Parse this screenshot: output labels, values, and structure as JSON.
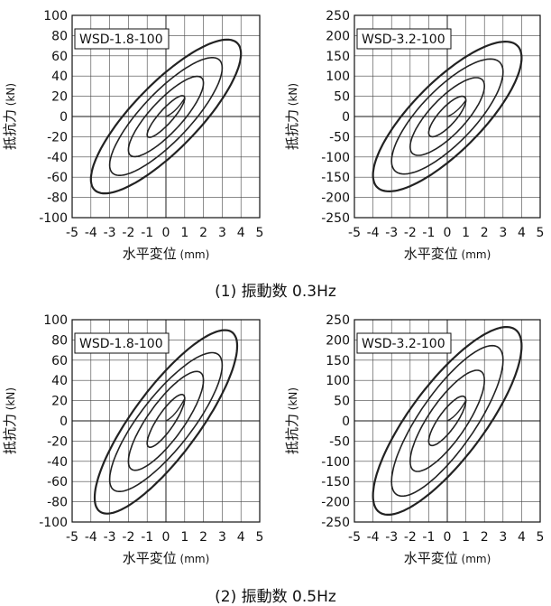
{
  "captions": {
    "top": "(1) 振動数 0.3Hz",
    "bottom": "(2) 振動数 0.5Hz"
  },
  "colors": {
    "axis": "#111111",
    "grid": "#444444",
    "curve": "#222222"
  },
  "chart_data": [
    {
      "type": "line",
      "label": "WSD-1.8-100",
      "frequency": "0.3Hz",
      "xlabel": "水平変位",
      "xunit": "(mm)",
      "ylabel": "抵抗力",
      "yunit": "(kN)",
      "xlim": [
        -5,
        5
      ],
      "ylim": [
        -100,
        100
      ],
      "xticks": [
        -5,
        -4,
        -3,
        -2,
        -1,
        0,
        1,
        2,
        3,
        4,
        5
      ],
      "yticks": [
        -100,
        -80,
        -60,
        -40,
        -20,
        0,
        20,
        40,
        60,
        80,
        100
      ],
      "grid": true,
      "loops": [
        {
          "amp": 1,
          "top": 18,
          "bot": -18,
          "leadUp": -10,
          "leadDown": 10,
          "w": 1.6
        },
        {
          "amp": 2,
          "top": 33,
          "bot": -33,
          "leadUp": -22,
          "leadDown": 22,
          "w": 1.6
        },
        {
          "amp": 3,
          "top": 48,
          "bot": -48,
          "leadUp": -33,
          "leadDown": 33,
          "w": 1.6
        },
        {
          "amp": 4,
          "top": 62,
          "bot": -62,
          "leadUp": -44,
          "leadDown": 44,
          "w": 2.2
        }
      ]
    },
    {
      "type": "line",
      "label": "WSD-3.2-100",
      "frequency": "0.3Hz",
      "xlabel": "水平変位",
      "xunit": "(mm)",
      "ylabel": "抵抗力",
      "yunit": "(kN)",
      "xlim": [
        -5,
        5
      ],
      "ylim": [
        -250,
        250
      ],
      "xticks": [
        -5,
        -4,
        -3,
        -2,
        -1,
        0,
        1,
        2,
        3,
        4,
        5
      ],
      "yticks": [
        -250,
        -200,
        -150,
        -100,
        -50,
        0,
        50,
        100,
        150,
        200,
        250
      ],
      "grid": true,
      "loops": [
        {
          "amp": 1,
          "top": 40,
          "bot": -40,
          "leadUp": -30,
          "leadDown": 30,
          "w": 1.6
        },
        {
          "amp": 2,
          "top": 75,
          "bot": -75,
          "leadUp": -60,
          "leadDown": 60,
          "w": 1.6
        },
        {
          "amp": 3,
          "top": 110,
          "bot": -110,
          "leadUp": -90,
          "leadDown": 90,
          "w": 1.6
        },
        {
          "amp": 4,
          "top": 145,
          "bot": -145,
          "leadUp": -115,
          "leadDown": 115,
          "w": 2.2
        }
      ]
    },
    {
      "type": "line",
      "label": "WSD-1.8-100",
      "frequency": "0.5Hz",
      "xlabel": "水平変位",
      "xunit": "(mm)",
      "ylabel": "抵抗力",
      "yunit": "(kN)",
      "xlim": [
        -5,
        5
      ],
      "ylim": [
        -100,
        100
      ],
      "xticks": [
        -5,
        -4,
        -3,
        -2,
        -1,
        0,
        1,
        2,
        3,
        4,
        5
      ],
      "yticks": [
        -100,
        -80,
        -60,
        -40,
        -20,
        0,
        20,
        40,
        60,
        80,
        100
      ],
      "grid": true,
      "loops": [
        {
          "amp": 1,
          "top": 22,
          "bot": -22,
          "leadUp": -14,
          "leadDown": 14,
          "w": 1.6
        },
        {
          "amp": 2,
          "top": 40,
          "bot": -40,
          "leadUp": -28,
          "leadDown": 28,
          "w": 1.6
        },
        {
          "amp": 3,
          "top": 55,
          "bot": -58,
          "leadUp": -40,
          "leadDown": 38,
          "w": 1.6
        },
        {
          "amp": 3.8,
          "top": 74,
          "bot": -76,
          "leadUp": -52,
          "leadDown": 50,
          "w": 2.2
        }
      ]
    },
    {
      "type": "line",
      "label": "WSD-3.2-100",
      "frequency": "0.5Hz",
      "xlabel": "水平変位",
      "xunit": "(mm)",
      "ylabel": "抵抗力",
      "yunit": "(kN)",
      "xlim": [
        -5,
        5
      ],
      "ylim": [
        -250,
        250
      ],
      "xticks": [
        -5,
        -4,
        -3,
        -2,
        -1,
        0,
        1,
        2,
        3,
        4,
        5
      ],
      "yticks": [
        -250,
        -200,
        -150,
        -100,
        -50,
        0,
        50,
        100,
        150,
        200,
        250
      ],
      "grid": true,
      "loops": [
        {
          "amp": 1,
          "top": 50,
          "bot": -50,
          "leadUp": -35,
          "leadDown": 35,
          "w": 1.6
        },
        {
          "amp": 2,
          "top": 100,
          "bot": -100,
          "leadUp": -75,
          "leadDown": 75,
          "w": 1.6
        },
        {
          "amp": 3,
          "top": 150,
          "bot": -150,
          "leadUp": -110,
          "leadDown": 110,
          "w": 1.6
        },
        {
          "amp": 4,
          "top": 185,
          "bot": -185,
          "leadUp": -140,
          "leadDown": 140,
          "w": 2.2
        }
      ]
    }
  ]
}
